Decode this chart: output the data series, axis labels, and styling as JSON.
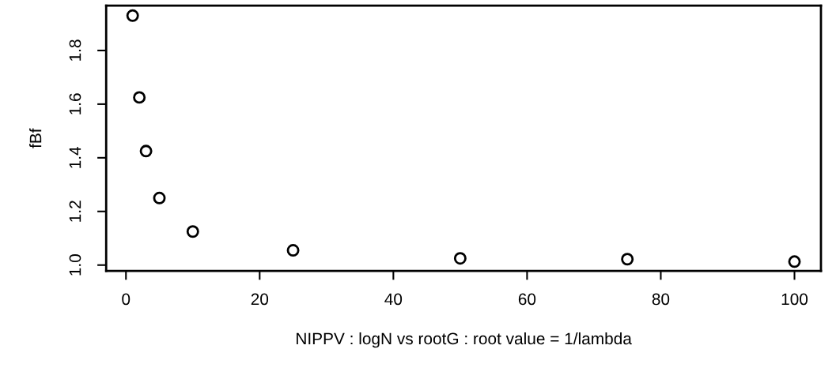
{
  "chart_data": {
    "type": "scatter",
    "xlabel": "NIPPV : logN vs rootG : root value = 1/lambda",
    "ylabel": "fBf",
    "x": [
      1,
      2,
      3,
      5,
      10,
      25,
      50,
      75,
      100
    ],
    "values": [
      1.93,
      1.625,
      1.425,
      1.25,
      1.125,
      1.055,
      1.025,
      1.022,
      1.013
    ],
    "color": "#000000",
    "marker": "circle",
    "grid": false,
    "legend": false,
    "xlim": [
      -2.96,
      103.96
    ],
    "ylim": [
      0.978,
      1.967
    ],
    "xticks": [
      0,
      20,
      40,
      60,
      80,
      100
    ],
    "yticks": [
      {
        "value": 1.0,
        "label": "1.0"
      },
      {
        "value": 1.2,
        "label": "1.2"
      },
      {
        "value": 1.4,
        "label": "1.4"
      },
      {
        "value": 1.6,
        "label": "1.6"
      },
      {
        "value": 1.8,
        "label": "1.8"
      }
    ]
  }
}
